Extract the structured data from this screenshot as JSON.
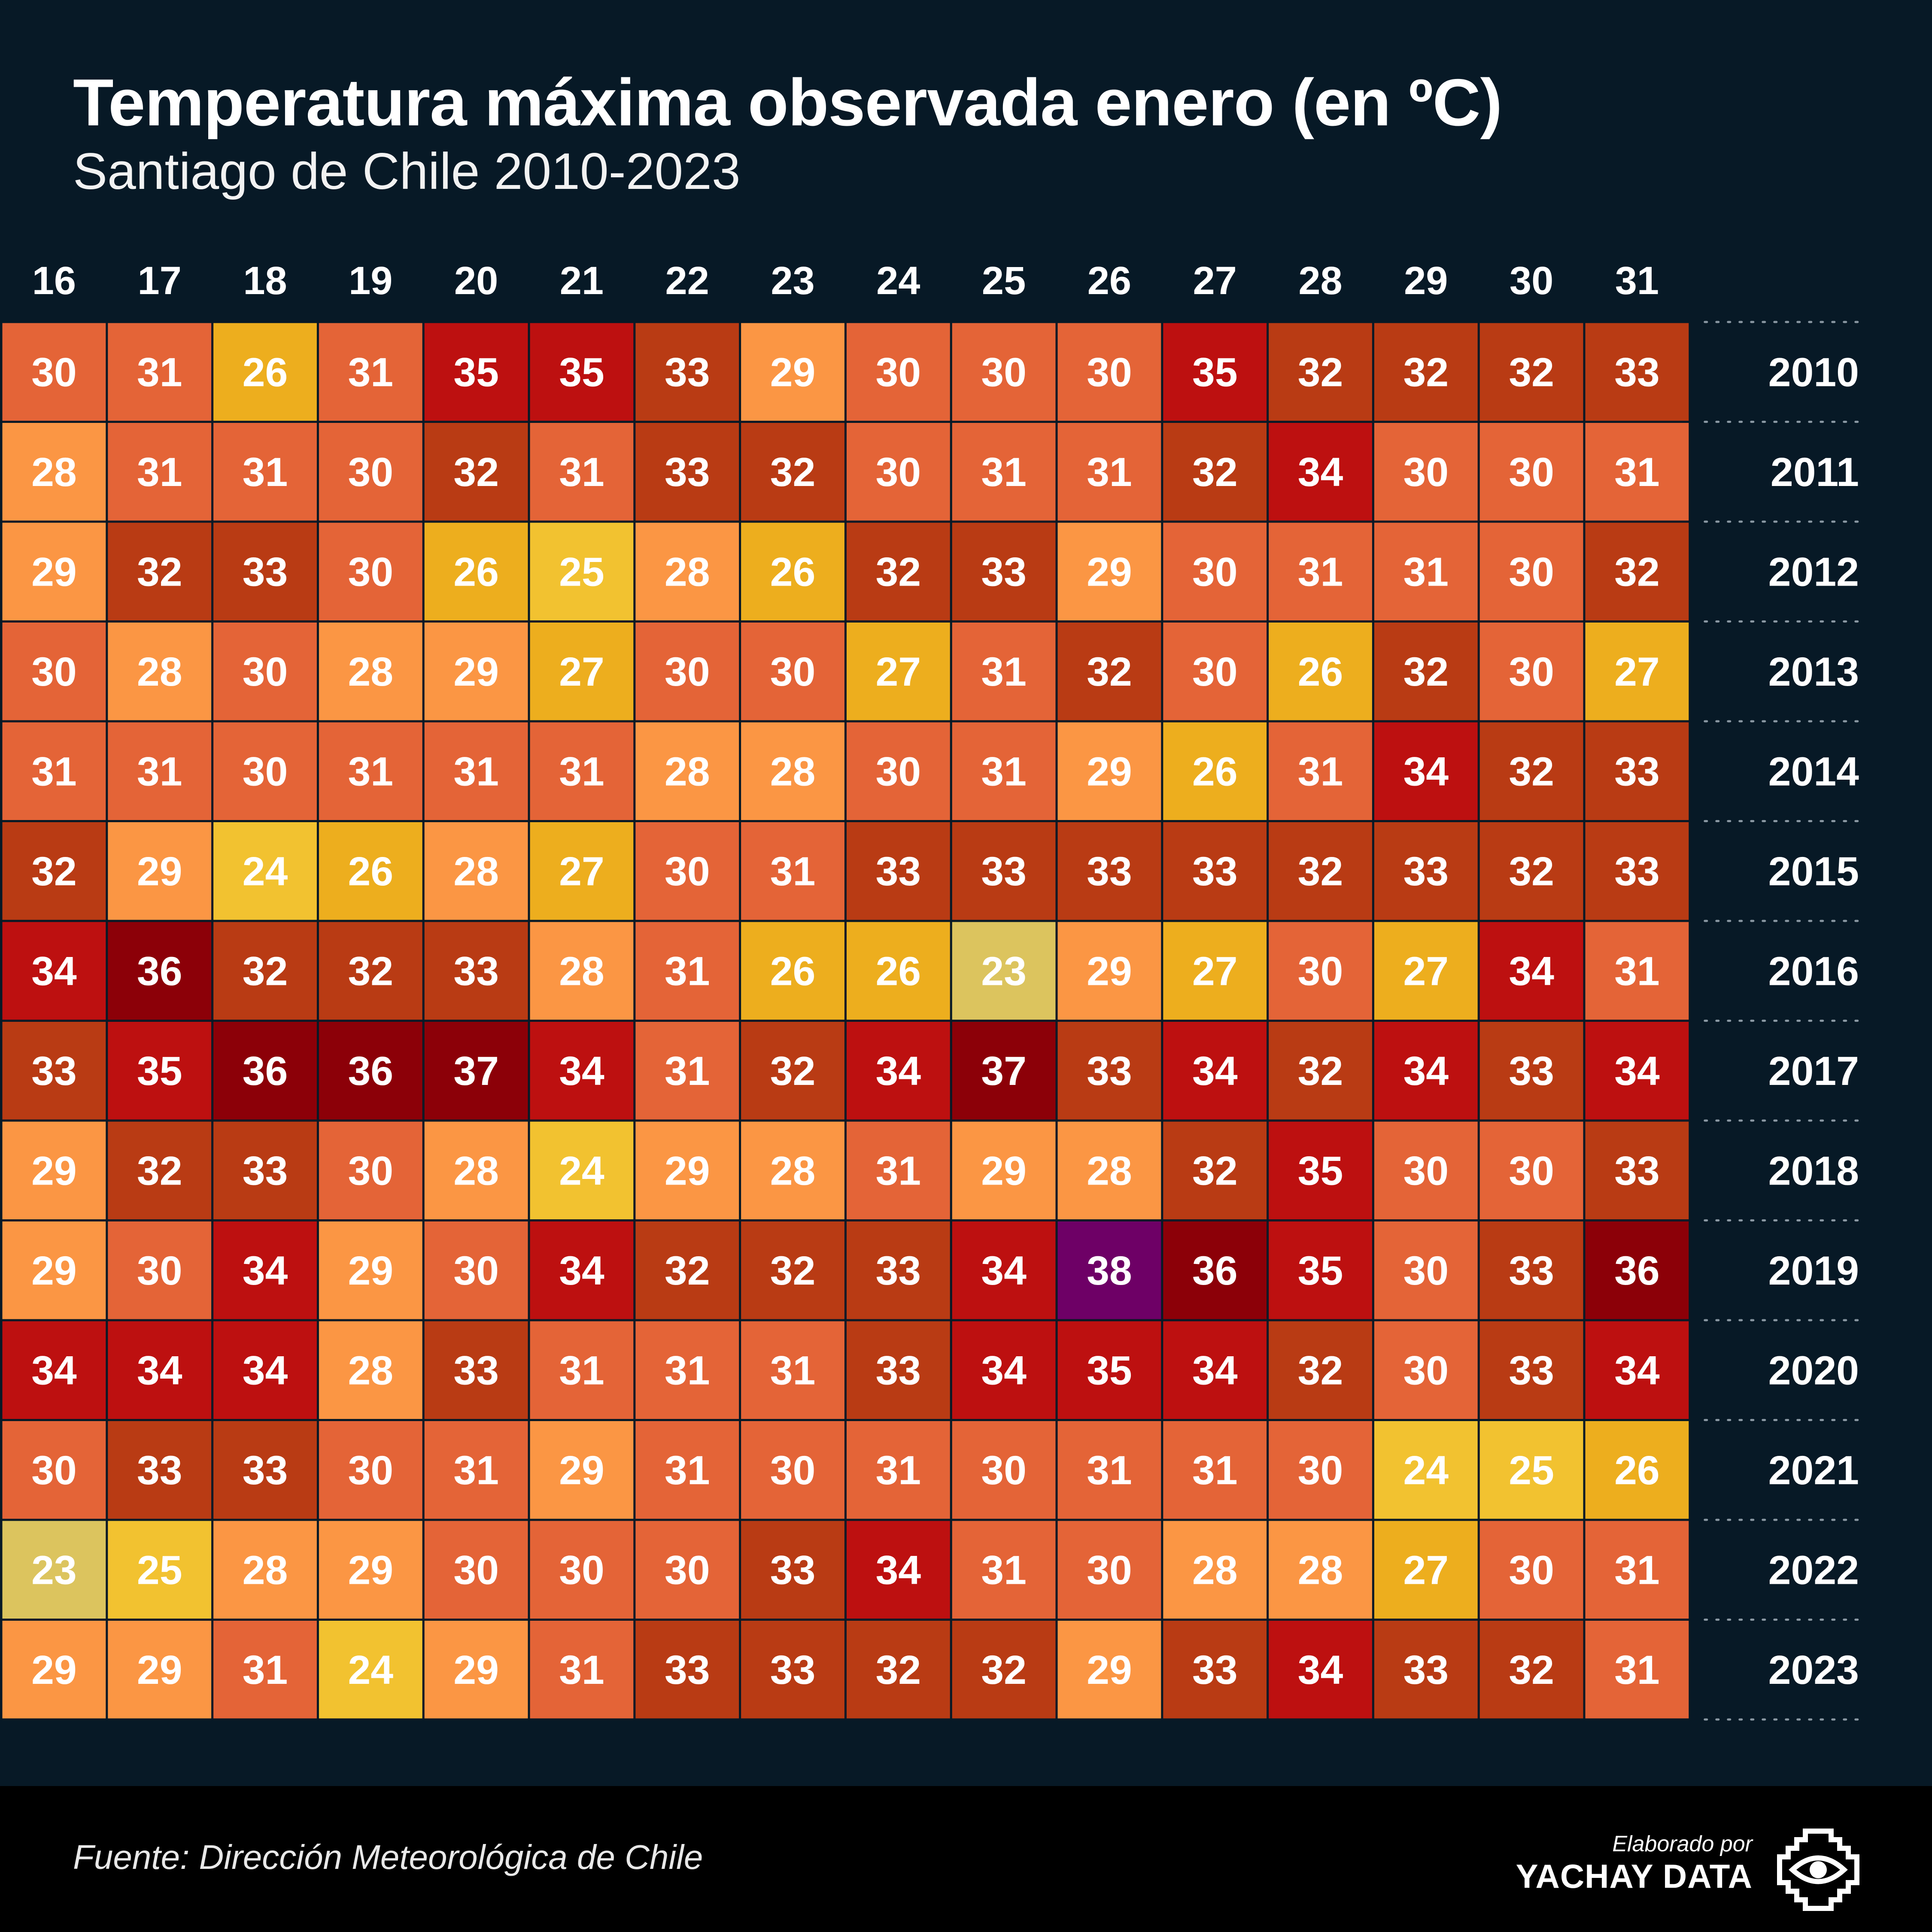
{
  "title": "Temperatura máxima observada enero (en ºC)",
  "subtitle": "Santiago de Chile 2010-2023",
  "footer": {
    "source": "Fuente: Dirección Meteorológica de Chile",
    "credit_by": "Elaborado por",
    "credit_name": "YACHAY DATA",
    "logo_icon": "eye-icon"
  },
  "colors": {
    "background": "#071926",
    "footer": "#000000",
    "scale": {
      "23": "#dcc45e",
      "24": "#f2c230",
      "25": "#f2c230",
      "26": "#edae1e",
      "27": "#edae1e",
      "28": "#fb9644",
      "29": "#fb9644",
      "30": "#e46437",
      "31": "#e46437",
      "32": "#b93b14",
      "33": "#b93b14",
      "34": "#bd1010",
      "35": "#bd1010",
      "36": "#8c0008",
      "37": "#8c0008",
      "38": "#6e0066"
    }
  },
  "chart_data": {
    "type": "heatmap",
    "title": "Temperatura máxima observada enero (en ºC)",
    "subtitle": "Santiago de Chile 2010-2023",
    "x": [
      16,
      17,
      18,
      19,
      20,
      21,
      22,
      23,
      24,
      25,
      26,
      27,
      28,
      29,
      30,
      31
    ],
    "y": [
      2010,
      2011,
      2012,
      2013,
      2014,
      2015,
      2016,
      2017,
      2018,
      2019,
      2020,
      2021,
      2022,
      2023
    ],
    "values": [
      [
        30,
        31,
        26,
        31,
        35,
        35,
        33,
        29,
        30,
        30,
        30,
        35,
        32,
        32,
        32,
        33
      ],
      [
        28,
        31,
        31,
        30,
        32,
        31,
        33,
        32,
        30,
        31,
        31,
        32,
        34,
        30,
        30,
        31
      ],
      [
        29,
        32,
        33,
        30,
        26,
        25,
        28,
        26,
        32,
        33,
        29,
        30,
        31,
        31,
        30,
        32
      ],
      [
        30,
        28,
        30,
        28,
        29,
        27,
        30,
        30,
        27,
        31,
        32,
        30,
        26,
        32,
        30,
        27
      ],
      [
        31,
        31,
        30,
        31,
        31,
        31,
        28,
        28,
        30,
        31,
        29,
        26,
        31,
        34,
        32,
        33
      ],
      [
        32,
        29,
        24,
        26,
        28,
        27,
        30,
        31,
        33,
        33,
        33,
        33,
        32,
        33,
        32,
        33
      ],
      [
        34,
        36,
        32,
        32,
        33,
        28,
        31,
        26,
        26,
        23,
        29,
        27,
        30,
        27,
        34,
        31
      ],
      [
        33,
        35,
        36,
        36,
        37,
        34,
        31,
        32,
        34,
        37,
        33,
        34,
        32,
        34,
        33,
        34
      ],
      [
        29,
        32,
        33,
        30,
        28,
        24,
        29,
        28,
        31,
        29,
        28,
        32,
        35,
        30,
        30,
        33
      ],
      [
        29,
        30,
        34,
        29,
        30,
        34,
        32,
        32,
        33,
        34,
        38,
        36,
        35,
        30,
        33,
        36
      ],
      [
        34,
        34,
        34,
        28,
        33,
        31,
        31,
        31,
        33,
        34,
        35,
        34,
        32,
        30,
        33,
        34
      ],
      [
        30,
        33,
        33,
        30,
        31,
        29,
        31,
        30,
        31,
        30,
        31,
        31,
        30,
        24,
        25,
        26
      ],
      [
        23,
        25,
        28,
        29,
        30,
        30,
        30,
        33,
        34,
        31,
        30,
        28,
        28,
        27,
        30,
        31
      ],
      [
        29,
        29,
        31,
        24,
        29,
        31,
        33,
        33,
        32,
        32,
        29,
        33,
        34,
        33,
        32,
        31
      ]
    ],
    "grid": false,
    "legend": "none"
  }
}
